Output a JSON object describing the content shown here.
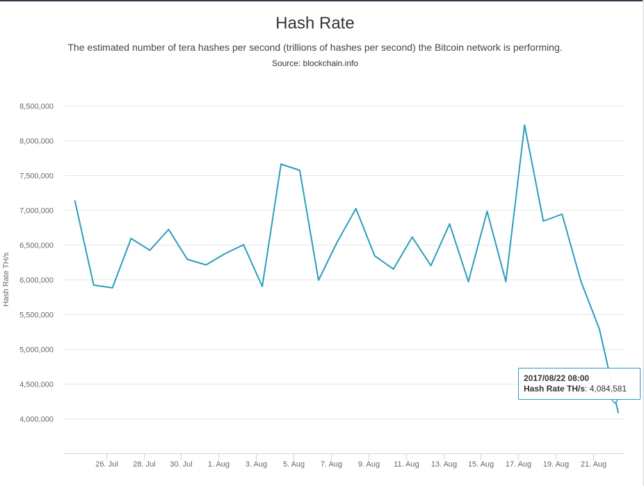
{
  "chart_data": {
    "type": "line",
    "title": "Hash Rate",
    "subtitle": "The estimated number of tera hashes per second (trillions of hashes per second) the Bitcoin network is performing.",
    "source": "Source: blockchain.info",
    "ylabel": "Hash Rate TH/s",
    "xlabel": "",
    "ylim": [
      3500000,
      8500000
    ],
    "y_ticks": [
      4000000,
      4500000,
      5000000,
      5500000,
      6000000,
      6500000,
      7000000,
      7500000,
      8000000,
      8500000
    ],
    "y_tick_labels": [
      "4,000,000",
      "4,500,000",
      "5,000,000",
      "5,500,000",
      "6,000,000",
      "6,500,000",
      "7,000,000",
      "7,500,000",
      "8,000,000",
      "8,500,000"
    ],
    "x_tick_labels": [
      "26. Jul",
      "28. Jul",
      "30. Jul",
      "1. Aug",
      "3. Aug",
      "5. Aug",
      "7. Aug",
      "9. Aug",
      "11. Aug",
      "13. Aug",
      "15. Aug",
      "17. Aug",
      "19. Aug",
      "21. Aug"
    ],
    "x_tick_dates": [
      "2017-07-26",
      "2017-07-28",
      "2017-07-30",
      "2017-08-01",
      "2017-08-03",
      "2017-08-05",
      "2017-08-07",
      "2017-08-09",
      "2017-08-11",
      "2017-08-13",
      "2017-08-15",
      "2017-08-17",
      "2017-08-19",
      "2017-08-21"
    ],
    "x_range": [
      "2017-07-23T18:00",
      "2017-08-22T16:00"
    ],
    "grid": true,
    "legend": "none",
    "series": [
      {
        "color": "#2a9dbc",
        "points": [
          {
            "x": "2017-07-24T08:00",
            "y": 7130000
          },
          {
            "x": "2017-07-25T08:00",
            "y": 5920000
          },
          {
            "x": "2017-07-26T08:00",
            "y": 5880000
          },
          {
            "x": "2017-07-27T08:00",
            "y": 6590000
          },
          {
            "x": "2017-07-28T08:00",
            "y": 6420000
          },
          {
            "x": "2017-07-29T08:00",
            "y": 6720000
          },
          {
            "x": "2017-07-30T08:00",
            "y": 6290000
          },
          {
            "x": "2017-07-31T08:00",
            "y": 6210000
          },
          {
            "x": "2017-08-01T08:00",
            "y": 6370000
          },
          {
            "x": "2017-08-02T08:00",
            "y": 6500000
          },
          {
            "x": "2017-08-03T08:00",
            "y": 5900000
          },
          {
            "x": "2017-08-04T08:00",
            "y": 7660000
          },
          {
            "x": "2017-08-05T08:00",
            "y": 7570000
          },
          {
            "x": "2017-08-06T08:00",
            "y": 5990000
          },
          {
            "x": "2017-08-07T08:00",
            "y": 6540000
          },
          {
            "x": "2017-08-08T08:00",
            "y": 7020000
          },
          {
            "x": "2017-08-09T08:00",
            "y": 6340000
          },
          {
            "x": "2017-08-10T08:00",
            "y": 6150000
          },
          {
            "x": "2017-08-11T08:00",
            "y": 6610000
          },
          {
            "x": "2017-08-12T08:00",
            "y": 6200000
          },
          {
            "x": "2017-08-13T08:00",
            "y": 6800000
          },
          {
            "x": "2017-08-14T08:00",
            "y": 5970000
          },
          {
            "x": "2017-08-15T08:00",
            "y": 6980000
          },
          {
            "x": "2017-08-16T08:00",
            "y": 5970000
          },
          {
            "x": "2017-08-17T08:00",
            "y": 8220000
          },
          {
            "x": "2017-08-18T08:00",
            "y": 6840000
          },
          {
            "x": "2017-08-19T08:00",
            "y": 6940000
          },
          {
            "x": "2017-08-20T08:00",
            "y": 5980000
          },
          {
            "x": "2017-08-21T08:00",
            "y": 5280000
          },
          {
            "x": "2017-08-22T08:00",
            "y": 4084581
          }
        ]
      }
    ],
    "tooltip": {
      "date": "2017/08/22 08:00",
      "series_label": "Hash Rate TH/s",
      "value": "4,084,581"
    }
  }
}
